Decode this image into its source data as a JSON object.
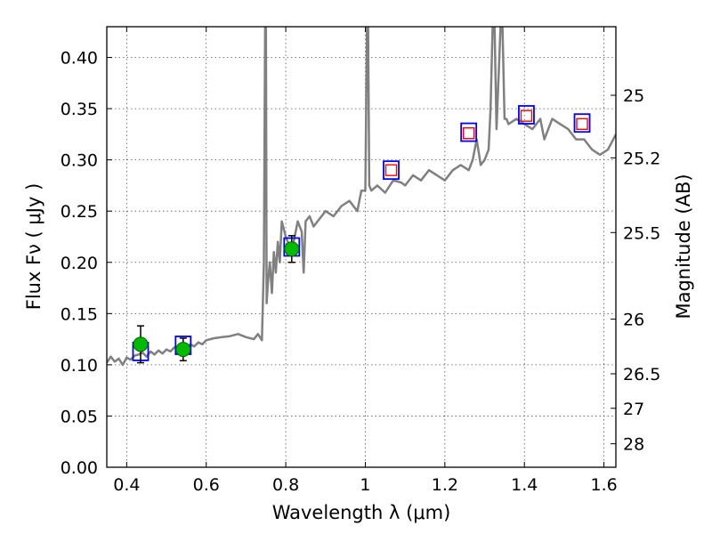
{
  "chart_data": {
    "type": "line",
    "xlabel": "Wavelength  λ (μm)",
    "ylabel": "Flux  Fν  ( μJy )",
    "y2label": "Magnitude (AB)",
    "xlim": [
      0.35,
      1.63
    ],
    "ylim": [
      0.0,
      0.43
    ],
    "grid": true,
    "x_ticks": [
      {
        "value": 0.4,
        "label": "0.4"
      },
      {
        "value": 0.6,
        "label": "0.6"
      },
      {
        "value": 0.8,
        "label": "0.8"
      },
      {
        "value": 1.0,
        "label": "1"
      },
      {
        "value": 1.2,
        "label": "1.2"
      },
      {
        "value": 1.4,
        "label": "1.4"
      },
      {
        "value": 1.6,
        "label": "1.6"
      }
    ],
    "y_ticks": [
      {
        "value": 0.0,
        "label": "0.00"
      },
      {
        "value": 0.05,
        "label": "0.05"
      },
      {
        "value": 0.1,
        "label": "0.10"
      },
      {
        "value": 0.15,
        "label": "0.15"
      },
      {
        "value": 0.2,
        "label": "0.20"
      },
      {
        "value": 0.25,
        "label": "0.25"
      },
      {
        "value": 0.3,
        "label": "0.30"
      },
      {
        "value": 0.35,
        "label": "0.35"
      },
      {
        "value": 0.4,
        "label": "0.40"
      }
    ],
    "mag_ticks": [
      {
        "value": 25,
        "label": "25"
      },
      {
        "value": 25.2,
        "label": "25.2"
      },
      {
        "value": 25.5,
        "label": "25.5"
      },
      {
        "value": 26,
        "label": "26"
      },
      {
        "value": 26.5,
        "label": "26.5"
      },
      {
        "value": 27,
        "label": "27"
      },
      {
        "value": 28,
        "label": "28"
      }
    ],
    "series": [
      {
        "name": "model-spectrum",
        "kind": "line",
        "color": "#808080",
        "x": [
          0.35,
          0.36,
          0.37,
          0.38,
          0.39,
          0.4,
          0.41,
          0.42,
          0.43,
          0.44,
          0.45,
          0.46,
          0.47,
          0.48,
          0.49,
          0.5,
          0.51,
          0.52,
          0.53,
          0.54,
          0.55,
          0.56,
          0.57,
          0.58,
          0.59,
          0.6,
          0.62,
          0.64,
          0.66,
          0.68,
          0.7,
          0.72,
          0.73,
          0.74,
          0.745,
          0.748,
          0.75,
          0.752,
          0.755,
          0.76,
          0.765,
          0.77,
          0.775,
          0.78,
          0.785,
          0.79,
          0.8,
          0.81,
          0.82,
          0.83,
          0.84,
          0.845,
          0.85,
          0.86,
          0.87,
          0.88,
          0.9,
          0.92,
          0.94,
          0.96,
          0.98,
          0.99,
          1.0,
          1.004,
          1.007,
          1.01,
          1.015,
          1.03,
          1.05,
          1.07,
          1.09,
          1.1,
          1.12,
          1.14,
          1.16,
          1.18,
          1.2,
          1.22,
          1.24,
          1.26,
          1.27,
          1.28,
          1.29,
          1.3,
          1.31,
          1.315,
          1.32,
          1.325,
          1.33,
          1.34,
          1.345,
          1.35,
          1.355,
          1.36,
          1.38,
          1.4,
          1.42,
          1.44,
          1.45,
          1.47,
          1.49,
          1.51,
          1.53,
          1.55,
          1.57,
          1.59,
          1.61,
          1.63
        ],
        "y": [
          0.102,
          0.108,
          0.103,
          0.106,
          0.1,
          0.107,
          0.105,
          0.109,
          0.11,
          0.112,
          0.108,
          0.113,
          0.11,
          0.114,
          0.111,
          0.115,
          0.113,
          0.117,
          0.114,
          0.118,
          0.117,
          0.12,
          0.118,
          0.122,
          0.12,
          0.124,
          0.126,
          0.127,
          0.128,
          0.13,
          0.127,
          0.125,
          0.13,
          0.124,
          0.2,
          0.43,
          0.43,
          0.16,
          0.18,
          0.2,
          0.17,
          0.21,
          0.19,
          0.22,
          0.2,
          0.24,
          0.225,
          0.215,
          0.22,
          0.24,
          0.23,
          0.19,
          0.24,
          0.245,
          0.235,
          0.24,
          0.25,
          0.245,
          0.255,
          0.26,
          0.25,
          0.27,
          0.27,
          0.43,
          0.43,
          0.275,
          0.27,
          0.275,
          0.268,
          0.28,
          0.278,
          0.275,
          0.285,
          0.28,
          0.29,
          0.285,
          0.28,
          0.29,
          0.295,
          0.29,
          0.3,
          0.32,
          0.295,
          0.3,
          0.31,
          0.35,
          0.43,
          0.43,
          0.33,
          0.43,
          0.43,
          0.34,
          0.34,
          0.335,
          0.34,
          0.335,
          0.33,
          0.34,
          0.32,
          0.34,
          0.335,
          0.33,
          0.32,
          0.32,
          0.31,
          0.305,
          0.31,
          0.325
        ]
      },
      {
        "name": "photometry-squares",
        "kind": "square",
        "color": "#0000ff",
        "x": [
          0.435,
          0.542,
          0.815,
          1.065,
          1.26,
          1.405,
          1.545
        ],
        "y": [
          0.113,
          0.119,
          0.215,
          0.29,
          0.327,
          0.344,
          0.336
        ]
      },
      {
        "name": "model-fluxes",
        "kind": "small-square",
        "color": "#ff0000",
        "x": [
          1.065,
          1.26,
          1.405,
          1.545
        ],
        "y": [
          0.29,
          0.326,
          0.343,
          0.335
        ]
      },
      {
        "name": "detections",
        "kind": "circle",
        "color": "#00bb00",
        "x": [
          0.435,
          0.542,
          0.815
        ],
        "y": [
          0.12,
          0.115,
          0.213
        ],
        "yerr": [
          0.018,
          0.011,
          0.013
        ]
      }
    ]
  }
}
